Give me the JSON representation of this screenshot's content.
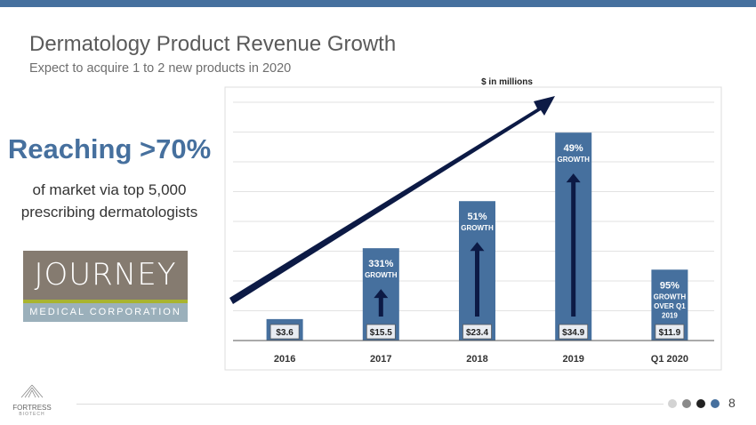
{
  "title": "Dermatology Product Revenue Growth",
  "subtitle": "Expect to acquire 1 to 2 new products in 2020",
  "highlight": {
    "headline": "Reaching >70%",
    "line1": "of market via top 5,000",
    "line2": "prescribing dermatologists"
  },
  "logo_journey": {
    "name": "JOURNEY",
    "sub": "MEDICAL CORPORATION"
  },
  "logo_fortress": {
    "name": "FORTRESS",
    "sub": "BIOTECH"
  },
  "page_number": "8",
  "colors": {
    "accent": "#46709e",
    "bar": "#46709e",
    "arrow": "#0c1a45",
    "dots": [
      "#d3d3d3",
      "#8a8a8a",
      "#222222",
      "#46709e"
    ]
  },
  "chart_data": {
    "type": "bar",
    "unit_label": "$ in millions",
    "categories": [
      "2016",
      "2017",
      "2018",
      "2019",
      "Q1 2020"
    ],
    "values": [
      3.6,
      15.5,
      23.4,
      34.9,
      11.9
    ],
    "value_labels": [
      "$3.6",
      "$15.5",
      "$23.4",
      "$34.9",
      "$11.9"
    ],
    "growth_annotations": [
      null,
      {
        "pct": "331%",
        "lines": [
          "GROWTH"
        ]
      },
      {
        "pct": "51%",
        "lines": [
          "GROWTH"
        ]
      },
      {
        "pct": "49%",
        "lines": [
          "GROWTH"
        ]
      },
      {
        "pct": "95%",
        "lines": [
          "GROWTH",
          "OVER Q1",
          "2019"
        ]
      }
    ],
    "ylim": [
      0,
      40
    ],
    "grid": true,
    "grid_step": 5,
    "trend_arrow": true
  }
}
